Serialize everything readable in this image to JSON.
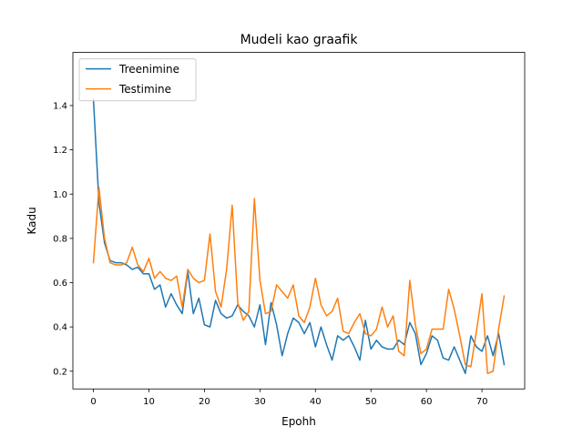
{
  "chart_data": {
    "type": "line",
    "title": "Mudeli kao graafik",
    "xlabel": "Epohh",
    "ylabel": "Kadu",
    "xlim": [
      -3.7,
      77.7
    ],
    "ylim": [
      0.12,
      1.64
    ],
    "xticks": [
      0,
      10,
      20,
      30,
      40,
      50,
      60,
      70
    ],
    "yticks": [
      0.2,
      0.4,
      0.6,
      0.8,
      1.0,
      1.2,
      1.4
    ],
    "ytick_labels": [
      "0.2",
      "0.4",
      "0.6",
      "0.8",
      "1.0",
      "1.2",
      "1.4"
    ],
    "grid": false,
    "legend_position": "top-left",
    "series": [
      {
        "name": "Treenimine",
        "color": "#1f77b4",
        "x": [
          0,
          1,
          2,
          3,
          4,
          5,
          6,
          7,
          8,
          9,
          10,
          11,
          12,
          13,
          14,
          15,
          16,
          17,
          18,
          19,
          20,
          21,
          22,
          23,
          24,
          25,
          26,
          27,
          28,
          29,
          30,
          31,
          32,
          33,
          34,
          35,
          36,
          37,
          38,
          39,
          40,
          41,
          42,
          43,
          44,
          45,
          46,
          47,
          48,
          49,
          50,
          51,
          52,
          53,
          54,
          55,
          56,
          57,
          58,
          59,
          60,
          61,
          62,
          63,
          64,
          65,
          66,
          67,
          68,
          69,
          70,
          71,
          72,
          73,
          74
        ],
        "values": [
          1.43,
          0.96,
          0.78,
          0.7,
          0.69,
          0.69,
          0.68,
          0.66,
          0.67,
          0.64,
          0.64,
          0.57,
          0.59,
          0.49,
          0.55,
          0.5,
          0.46,
          0.65,
          0.46,
          0.53,
          0.41,
          0.4,
          0.52,
          0.46,
          0.44,
          0.45,
          0.5,
          0.47,
          0.45,
          0.4,
          0.5,
          0.32,
          0.51,
          0.41,
          0.27,
          0.37,
          0.44,
          0.42,
          0.37,
          0.42,
          0.31,
          0.4,
          0.32,
          0.25,
          0.36,
          0.34,
          0.36,
          0.31,
          0.25,
          0.43,
          0.3,
          0.34,
          0.31,
          0.3,
          0.3,
          0.34,
          0.32,
          0.42,
          0.37,
          0.23,
          0.28,
          0.36,
          0.34,
          0.26,
          0.25,
          0.31,
          0.25,
          0.19,
          0.36,
          0.31,
          0.29,
          0.36,
          0.27,
          0.37,
          0.23
        ]
      },
      {
        "name": "Testimine",
        "color": "#ff7f0e",
        "x": [
          0,
          1,
          2,
          3,
          4,
          5,
          6,
          7,
          8,
          9,
          10,
          11,
          12,
          13,
          14,
          15,
          16,
          17,
          18,
          19,
          20,
          21,
          22,
          23,
          24,
          25,
          26,
          27,
          28,
          29,
          30,
          31,
          32,
          33,
          34,
          35,
          36,
          37,
          38,
          39,
          40,
          41,
          42,
          43,
          44,
          45,
          46,
          47,
          48,
          49,
          50,
          51,
          52,
          53,
          54,
          55,
          56,
          57,
          58,
          59,
          60,
          61,
          62,
          63,
          64,
          65,
          66,
          67,
          68,
          69,
          70,
          71,
          72,
          73,
          74
        ],
        "values": [
          0.69,
          1.03,
          0.8,
          0.69,
          0.68,
          0.68,
          0.69,
          0.76,
          0.68,
          0.65,
          0.71,
          0.62,
          0.65,
          0.62,
          0.61,
          0.63,
          0.49,
          0.66,
          0.62,
          0.6,
          0.61,
          0.82,
          0.56,
          0.49,
          0.66,
          0.95,
          0.51,
          0.43,
          0.47,
          0.98,
          0.61,
          0.46,
          0.47,
          0.59,
          0.56,
          0.53,
          0.59,
          0.45,
          0.42,
          0.49,
          0.62,
          0.5,
          0.45,
          0.47,
          0.53,
          0.38,
          0.37,
          0.42,
          0.46,
          0.37,
          0.36,
          0.39,
          0.49,
          0.4,
          0.45,
          0.29,
          0.27,
          0.61,
          0.41,
          0.28,
          0.3,
          0.39,
          0.39,
          0.39,
          0.57,
          0.48,
          0.36,
          0.23,
          0.22,
          0.38,
          0.55,
          0.19,
          0.2,
          0.39,
          0.54
        ]
      }
    ]
  }
}
